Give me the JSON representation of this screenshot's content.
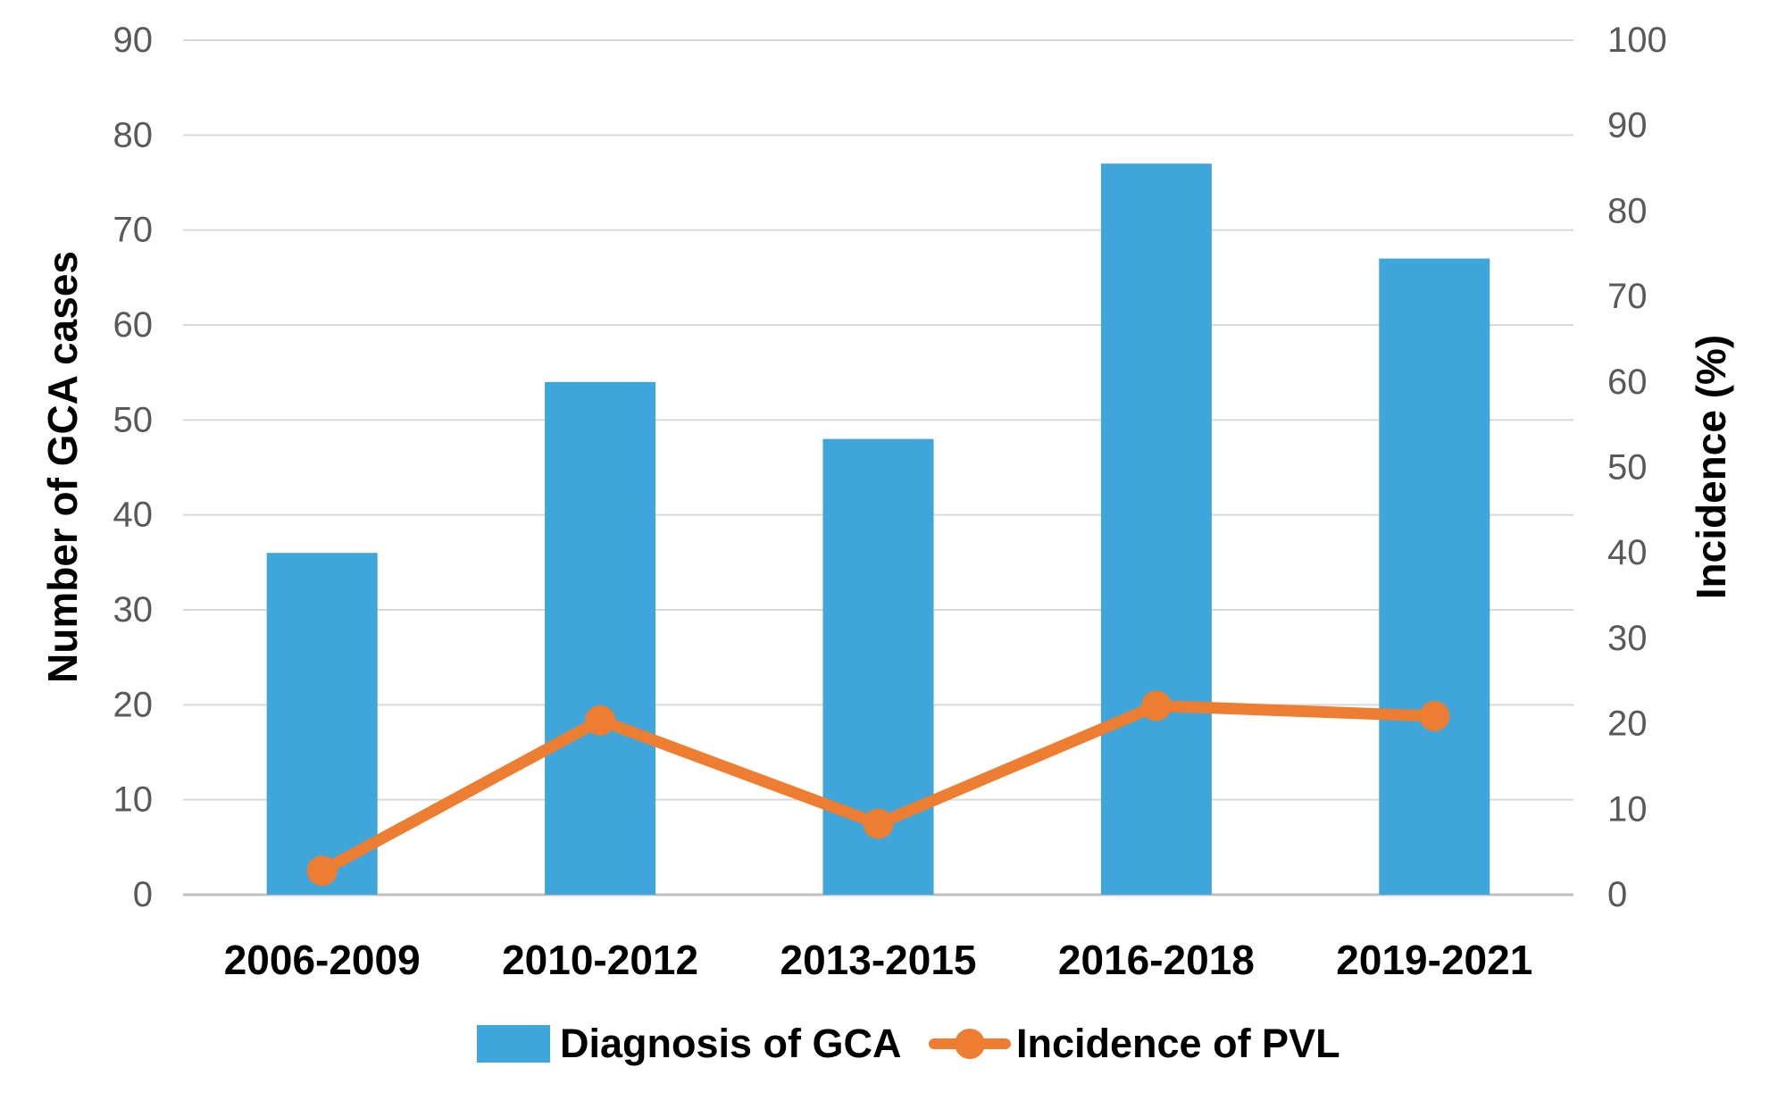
{
  "chart_data": {
    "type": "bar+line combo",
    "categories": [
      "2006-2009",
      "2010-2012",
      "2013-2015",
      "2016-2018",
      "2019-2021"
    ],
    "series": [
      {
        "name": "Diagnosis of GCA",
        "type": "bar",
        "axis": "left",
        "color": "#3EA6DA",
        "values": [
          36,
          54,
          48,
          77,
          67
        ]
      },
      {
        "name": "Incidence of PVL",
        "type": "line",
        "axis": "right",
        "color": "#ED7D31",
        "values": [
          2.8,
          20.4,
          8.3,
          22.1,
          20.9
        ]
      }
    ],
    "left_axis": {
      "label": "Number of GCA cases",
      "min": 0,
      "max": 90,
      "step": 10,
      "ticks": [
        "0",
        "10",
        "20",
        "30",
        "40",
        "50",
        "60",
        "70",
        "80",
        "90"
      ]
    },
    "right_axis": {
      "label": "Incidence (%)",
      "min": 0,
      "max": 100,
      "step": 10,
      "ticks": [
        "0",
        "10",
        "20",
        "30",
        "40",
        "50",
        "60",
        "70",
        "80",
        "90",
        "100"
      ]
    },
    "grid": true,
    "legend_position": "bottom"
  },
  "colors": {
    "bar": "#3EA6DA",
    "line": "#ED7D31",
    "gridline": "#D9D9D9",
    "baseline": "#BFBFBF",
    "tick_label": "#595959",
    "text": "#000000",
    "background": "#FFFFFF"
  }
}
